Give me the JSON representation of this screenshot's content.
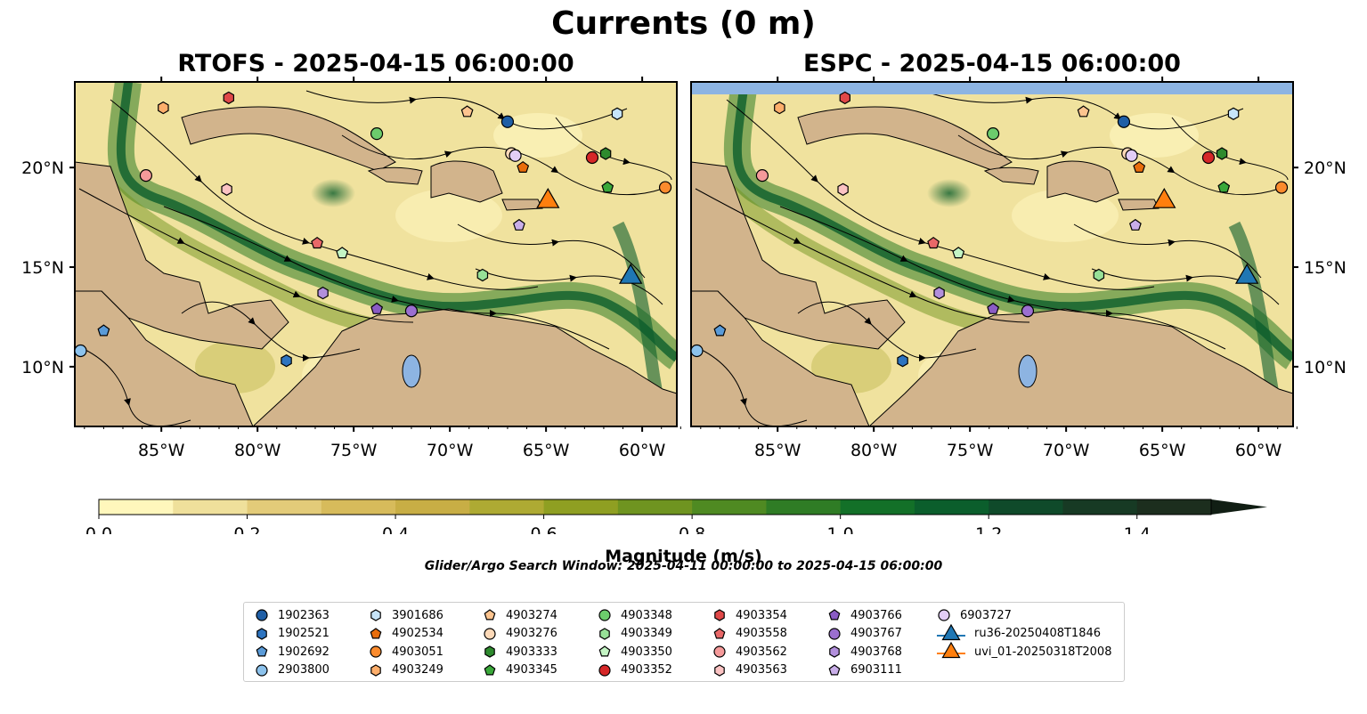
{
  "figure": {
    "title": "Currents (0 m)",
    "left_panel_title": "RTOFS - 2025-04-15 06:00:00",
    "right_panel_title": "ESPC - 2025-04-15 06:00:00",
    "search_window": "Glider/Argo Search Window: 2025-04-11 00:00:00 to 2025-04-15 06:00:00"
  },
  "map": {
    "lon_range": [
      -89.5,
      -58.2
    ],
    "lat_range": [
      7.0,
      24.3
    ],
    "lon_ticks": [
      "85°W",
      "80°W",
      "75°W",
      "70°W",
      "65°W",
      "60°W"
    ],
    "lat_ticks": [
      "20°N",
      "15°N",
      "10°N"
    ],
    "colors": {
      "ocean_low": "#fff8c2",
      "land": "#d2b48c",
      "lake": "#8db4e2",
      "current_high": "#0b5e2c",
      "streamline": "#000000"
    }
  },
  "colorbar": {
    "label": "Magnitude (m/s)",
    "ticks": [
      "0.0",
      "0.2",
      "0.4",
      "0.6",
      "0.8",
      "1.0",
      "1.2",
      "1.4"
    ],
    "min": 0.0,
    "max": 1.5,
    "step": 0.1,
    "extend": "max",
    "colors": [
      "#fff7bc",
      "#efe09b",
      "#e3cb79",
      "#d7bb5b",
      "#c8ae45",
      "#aeaa33",
      "#8f9f22",
      "#6f9420",
      "#4f8a22",
      "#2f7c25",
      "#137028",
      "#0b5e2c",
      "#0f4a2a",
      "#173a24",
      "#1c2e1e"
    ]
  },
  "legend": {
    "entries": [
      {
        "label": "1902363",
        "marker": "circle",
        "color": "#1f5fa6"
      },
      {
        "label": "1902521",
        "marker": "hexagon",
        "color": "#2d74c0"
      },
      {
        "label": "1902692",
        "marker": "pentagon",
        "color": "#5a9bd8"
      },
      {
        "label": "2903800",
        "marker": "circle",
        "color": "#8cc2ec"
      },
      {
        "label": "3901686",
        "marker": "hexagon",
        "color": "#c6e4f9"
      },
      {
        "label": "4902534",
        "marker": "pentagon",
        "color": "#e86d0c"
      },
      {
        "label": "4903051",
        "marker": "circle",
        "color": "#fb8b2d"
      },
      {
        "label": "4903249",
        "marker": "hexagon",
        "color": "#fdae6b"
      },
      {
        "label": "4903274",
        "marker": "pentagon",
        "color": "#fdc48f"
      },
      {
        "label": "4903276",
        "marker": "circle",
        "color": "#fdd9b8"
      },
      {
        "label": "4903333",
        "marker": "hexagon",
        "color": "#2e8a2e"
      },
      {
        "label": "4903345",
        "marker": "pentagon",
        "color": "#3aa83a"
      },
      {
        "label": "4903348",
        "marker": "circle",
        "color": "#6ccc6c"
      },
      {
        "label": "4903349",
        "marker": "hexagon",
        "color": "#97e097"
      },
      {
        "label": "4903350",
        "marker": "pentagon",
        "color": "#c4f5c4"
      },
      {
        "label": "4903352",
        "marker": "circle",
        "color": "#d62728"
      },
      {
        "label": "4903354",
        "marker": "hexagon",
        "color": "#e04848"
      },
      {
        "label": "4903558",
        "marker": "pentagon",
        "color": "#e96868"
      },
      {
        "label": "4903562",
        "marker": "circle",
        "color": "#f59a9a"
      },
      {
        "label": "4903563",
        "marker": "hexagon",
        "color": "#fbc3c3"
      },
      {
        "label": "4903766",
        "marker": "pentagon",
        "color": "#8a5cc4"
      },
      {
        "label": "4903767",
        "marker": "circle",
        "color": "#9b6fd0"
      },
      {
        "label": "4903768",
        "marker": "hexagon",
        "color": "#b28fdc"
      },
      {
        "label": "6903111",
        "marker": "pentagon",
        "color": "#c9aee9"
      },
      {
        "label": "6903727",
        "marker": "circle",
        "color": "#e2cdf6"
      },
      {
        "label": "ru36-20250408T1846",
        "marker": "triangle-line",
        "color": "#1f77b4"
      },
      {
        "label": "uvi_01-20250318T2008",
        "marker": "triangle-line",
        "color": "#ff7f0e"
      }
    ]
  },
  "markers": [
    {
      "id": "1902363",
      "lon": -67.0,
      "lat": 22.3
    },
    {
      "id": "1902521",
      "lon": -78.5,
      "lat": 10.3
    },
    {
      "id": "1902692",
      "lon": -88.0,
      "lat": 11.8
    },
    {
      "id": "2903800",
      "lon": -89.2,
      "lat": 10.8
    },
    {
      "id": "3901686",
      "lon": -61.3,
      "lat": 22.7
    },
    {
      "id": "4902534",
      "lon": -66.2,
      "lat": 20.0
    },
    {
      "id": "4903051",
      "lon": -58.8,
      "lat": 19.0
    },
    {
      "id": "4903249",
      "lon": -84.9,
      "lat": 23.0
    },
    {
      "id": "4903274",
      "lon": -69.1,
      "lat": 22.8
    },
    {
      "id": "4903276",
      "lon": -66.8,
      "lat": 20.7
    },
    {
      "id": "4903333",
      "lon": -61.9,
      "lat": 20.7
    },
    {
      "id": "4903345",
      "lon": -61.8,
      "lat": 19.0
    },
    {
      "id": "4903348",
      "lon": -73.8,
      "lat": 21.7
    },
    {
      "id": "4903349",
      "lon": -68.3,
      "lat": 14.6
    },
    {
      "id": "4903350",
      "lon": -75.6,
      "lat": 15.7
    },
    {
      "id": "4903352",
      "lon": -62.6,
      "lat": 20.5
    },
    {
      "id": "4903354",
      "lon": -81.5,
      "lat": 23.5
    },
    {
      "id": "4903558",
      "lon": -76.9,
      "lat": 16.2
    },
    {
      "id": "4903562",
      "lon": -85.8,
      "lat": 19.6
    },
    {
      "id": "4903563",
      "lon": -81.6,
      "lat": 18.9
    },
    {
      "id": "4903766",
      "lon": -73.8,
      "lat": 12.9
    },
    {
      "id": "4903767",
      "lon": -72.0,
      "lat": 12.8
    },
    {
      "id": "4903768",
      "lon": -76.6,
      "lat": 13.7
    },
    {
      "id": "6903111",
      "lon": -66.4,
      "lat": 17.1
    },
    {
      "id": "6903727",
      "lon": -66.6,
      "lat": 20.6
    },
    {
      "id": "ru36-20250408T1846",
      "lon": -60.6,
      "lat": 14.5
    },
    {
      "id": "uvi_01-20250318T2008",
      "lon": -64.9,
      "lat": 18.3
    }
  ]
}
